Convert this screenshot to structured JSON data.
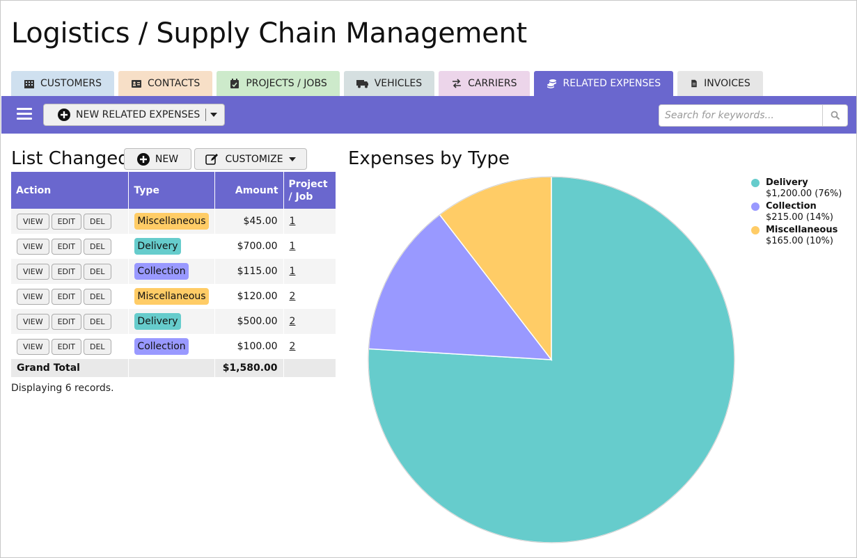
{
  "app": {
    "title": "Logistics / Supply Chain Management"
  },
  "tabs": [
    {
      "label": "CUSTOMERS",
      "icon": "building-icon",
      "color": "#cfe0ef"
    },
    {
      "label": "CONTACTS",
      "icon": "id-card-icon",
      "color": "#f7dfc7"
    },
    {
      "label": "PROJECTS / JOBS",
      "icon": "calendar-check-icon",
      "color": "#cdeacb"
    },
    {
      "label": "VEHICLES",
      "icon": "truck-icon",
      "color": "#d5dfe0"
    },
    {
      "label": "CARRIERS",
      "icon": "exchange-icon",
      "color": "#ecd5ea"
    },
    {
      "label": "RELATED EXPENSES",
      "icon": "coins-icon",
      "color": "#6a67ce",
      "active": true
    },
    {
      "label": "INVOICES",
      "icon": "file-icon",
      "color": "#e6e6e6"
    }
  ],
  "toolbar": {
    "new_label": "NEW RELATED EXPENSES",
    "search_placeholder": "Search for keywords..."
  },
  "list": {
    "title": "List Changed",
    "new_label": "NEW",
    "customize_label": "CUSTOMIZE",
    "columns": {
      "action": "Action",
      "type": "Type",
      "amount": "Amount",
      "project": "Project / Job"
    },
    "action_labels": {
      "view": "VIEW",
      "edit": "EDIT",
      "del": "DEL"
    },
    "rows": [
      {
        "type": "Miscellaneous",
        "amount": "$45.00",
        "project": "1"
      },
      {
        "type": "Delivery",
        "amount": "$700.00",
        "project": "1"
      },
      {
        "type": "Collection",
        "amount": "$115.00",
        "project": "1"
      },
      {
        "type": "Miscellaneous",
        "amount": "$120.00",
        "project": "2"
      },
      {
        "type": "Delivery",
        "amount": "$500.00",
        "project": "2"
      },
      {
        "type": "Collection",
        "amount": "$100.00",
        "project": "2"
      }
    ],
    "total_label": "Grand Total",
    "total_amount": "$1,580.00",
    "records_text": "Displaying 6 records."
  },
  "type_colors": {
    "Delivery": "#66cccc",
    "Collection": "#9999ff",
    "Miscellaneous": "#ffcc66"
  },
  "chart_data": {
    "type": "pie",
    "title": "Expenses by Type",
    "legend": "top-right",
    "slices": [
      {
        "label": "Delivery",
        "value": 1200,
        "value_text": "$1,200.00 (76%)",
        "color": "#66cccc"
      },
      {
        "label": "Collection",
        "value": 215,
        "value_text": "$215.00 (14%)",
        "color": "#9999ff"
      },
      {
        "label": "Miscellaneous",
        "value": 165,
        "value_text": "$165.00 (10%)",
        "color": "#ffcc66"
      }
    ]
  }
}
